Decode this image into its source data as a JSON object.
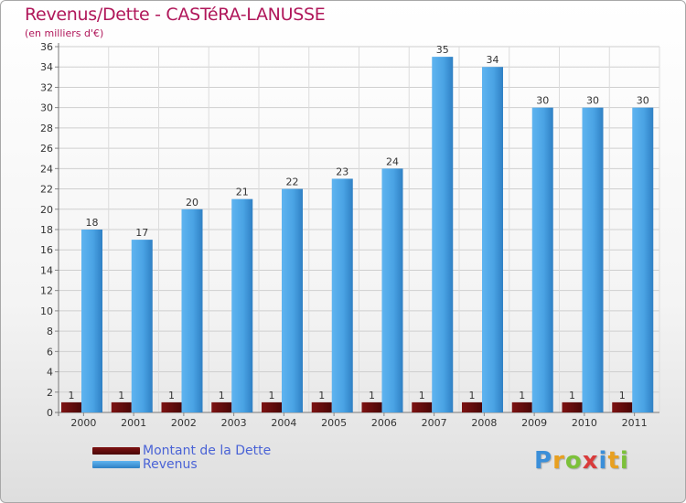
{
  "header": {
    "title": "Revenus/Dette - CASTéRA-LANUSSE",
    "subtitle": "(en milliers d'€)"
  },
  "colors": {
    "title": "#b0175a",
    "dette": "#6b0a0a",
    "revenus": "#4ea6e6",
    "legend_text": "#4a63d6"
  },
  "chart_data": {
    "type": "bar",
    "title": "Revenus/Dette - CASTéRA-LANUSSE",
    "ylabel": "(en milliers d'€)",
    "xlabel": "",
    "categories": [
      "2000",
      "2001",
      "2002",
      "2003",
      "2004",
      "2005",
      "2006",
      "2007",
      "2008",
      "2009",
      "2010",
      "2011"
    ],
    "series": [
      {
        "name": "Montant de la Dette",
        "values": [
          1,
          1,
          1,
          1,
          1,
          1,
          1,
          1,
          1,
          1,
          1,
          1
        ]
      },
      {
        "name": "Revenus",
        "values": [
          18,
          17,
          20,
          21,
          22,
          23,
          24,
          35,
          34,
          30,
          30,
          30
        ]
      }
    ],
    "ylim": [
      0,
      36
    ],
    "yticks": [
      0,
      2,
      4,
      6,
      8,
      10,
      12,
      14,
      16,
      18,
      20,
      22,
      24,
      26,
      28,
      30,
      32,
      34,
      36
    ],
    "grid": true,
    "legend": "bottom-left"
  },
  "legend": {
    "items": [
      {
        "label": "Montant de la Dette",
        "color": "#6b0a0a"
      },
      {
        "label": "Revenus",
        "color": "#4ea6e6"
      }
    ]
  },
  "brand": {
    "letters": [
      "P",
      "r",
      "o",
      "x",
      "i",
      "t",
      "i"
    ],
    "colors": [
      "#3b8fd9",
      "#e8a020",
      "#7cc13a",
      "#d93b3b",
      "#3b8fd9",
      "#e8a020",
      "#7cc13a"
    ]
  }
}
